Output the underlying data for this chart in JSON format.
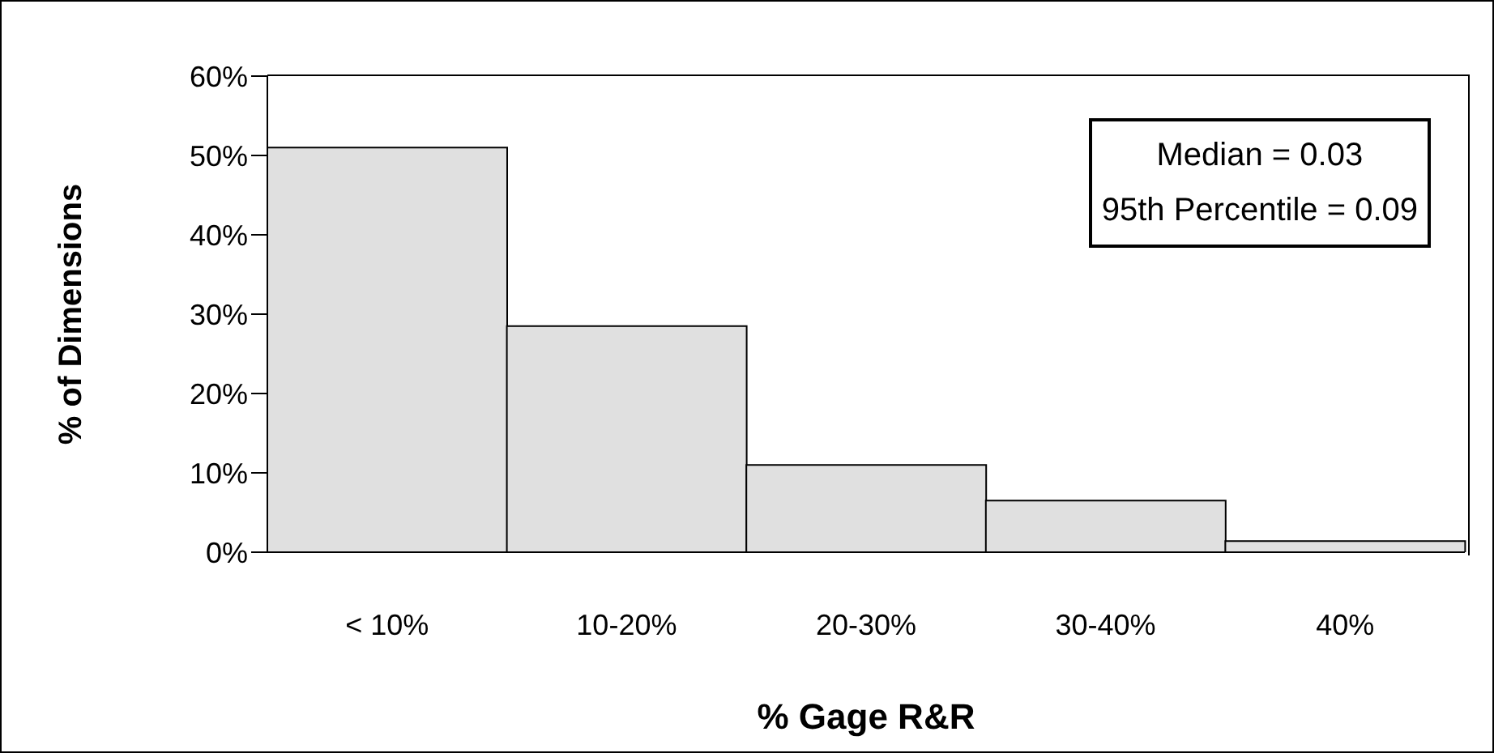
{
  "chart_data": {
    "type": "bar",
    "xlabel": "% Gage R&R",
    "ylabel": "% of Dimensions",
    "categories": [
      "< 10%",
      "10-20%",
      "20-30%",
      "30-40%",
      "40%"
    ],
    "values": [
      51,
      28.5,
      11,
      6.5,
      1.4
    ],
    "color": "#e0e0e0",
    "ylim": [
      0,
      60
    ],
    "yticks": [
      {
        "value": 0,
        "label": "0%"
      },
      {
        "value": 10,
        "label": "10%"
      },
      {
        "value": 20,
        "label": "20%"
      },
      {
        "value": 30,
        "label": "30%"
      },
      {
        "value": 40,
        "label": "40%"
      },
      {
        "value": 50,
        "label": "50%"
      },
      {
        "value": 60,
        "label": "60%"
      }
    ],
    "annotations": [
      "Median = 0.03",
      "95th Percentile = 0.09"
    ],
    "grid": false,
    "legend": false
  }
}
